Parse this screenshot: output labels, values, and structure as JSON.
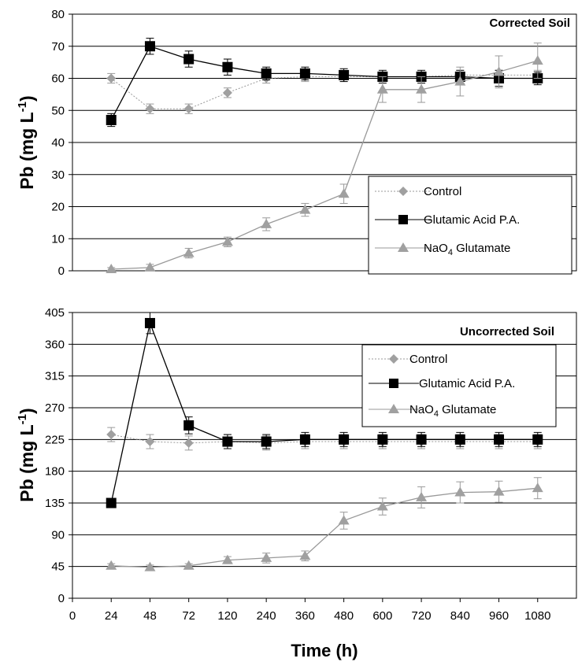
{
  "chart_data": [
    {
      "type": "line",
      "title": "Corrected Soil",
      "ylabel": "Pb (mg L-1)",
      "xlabel": "",
      "categories": [
        "24",
        "48",
        "72",
        "120",
        "240",
        "360",
        "480",
        "600",
        "720",
        "840",
        "960",
        "1080"
      ],
      "ylim": [
        0,
        80
      ],
      "yticks": [
        "0",
        "10",
        "20",
        "30",
        "40",
        "50",
        "60",
        "70",
        "80"
      ],
      "grid": "horizontal",
      "legend_position": "bottom-right",
      "series": [
        {
          "name": "Control",
          "color": "#999999",
          "marker": "diamond",
          "line": "dotted",
          "values": [
            60,
            50.5,
            50.5,
            55.5,
            60,
            60.5,
            60.5,
            60.5,
            60.5,
            61,
            61,
            61
          ],
          "errors": [
            1.5,
            1.5,
            1.5,
            1.5,
            1.5,
            1.5,
            1.5,
            1.5,
            1.5,
            1.5,
            1.5,
            1.5
          ]
        },
        {
          "name": "Glutamic Acid P.A.",
          "color": "#000000",
          "marker": "square",
          "line": "solid",
          "values": [
            47,
            70,
            66,
            63.5,
            61.5,
            61.5,
            61,
            60.5,
            60.5,
            60.5,
            60,
            60
          ],
          "errors": [
            2,
            2.5,
            2.5,
            2.5,
            2,
            2,
            2,
            2,
            2,
            2,
            2.5,
            2
          ]
        },
        {
          "name": "NaO4 Glutamate",
          "color": "#999999",
          "marker": "triangle",
          "line": "solid",
          "values": [
            0.5,
            1,
            5.5,
            9,
            14.5,
            19,
            24,
            56.5,
            56.5,
            59,
            62,
            65.5
          ],
          "errors": [
            0.5,
            1,
            1.5,
            1.5,
            2,
            2,
            3,
            4,
            4,
            4.5,
            5,
            5.5
          ]
        }
      ]
    },
    {
      "type": "line",
      "title": "Uncorrected Soil",
      "ylabel": "Pb (mg L-1)",
      "xlabel": "Time (h)",
      "categories": [
        "24",
        "48",
        "72",
        "120",
        "240",
        "360",
        "480",
        "600",
        "720",
        "840",
        "960",
        "1080"
      ],
      "xticks": [
        "0",
        "24",
        "48",
        "72",
        "120",
        "240",
        "360",
        "480",
        "600",
        "720",
        "840",
        "960",
        "1080"
      ],
      "ylim": [
        0,
        405
      ],
      "yticks": [
        "0",
        "45",
        "90",
        "135",
        "180",
        "225",
        "270",
        "315",
        "360",
        "405"
      ],
      "grid": "horizontal",
      "legend_position": "top-right",
      "series": [
        {
          "name": "Control",
          "color": "#999999",
          "marker": "diamond",
          "line": "dotted",
          "values": [
            232,
            222,
            220,
            222,
            220,
            222,
            222,
            222,
            222,
            222,
            222,
            222
          ],
          "errors": [
            10,
            10,
            10,
            10,
            10,
            10,
            10,
            10,
            10,
            10,
            10,
            10
          ]
        },
        {
          "name": "Glutamic Acid P.A.",
          "color": "#000000",
          "marker": "square",
          "line": "solid",
          "values": [
            135,
            390,
            245,
            222,
            222,
            225,
            225,
            225,
            225,
            225,
            225,
            225
          ],
          "errors": [
            3,
            15,
            12,
            10,
            10,
            10,
            10,
            10,
            10,
            10,
            10,
            10
          ]
        },
        {
          "name": "NaO4 Glutamate",
          "color": "#999999",
          "marker": "triangle",
          "line": "solid",
          "values": [
            46,
            44,
            46,
            54,
            57,
            60,
            110,
            130,
            143,
            150,
            151,
            156
          ],
          "errors": [
            3,
            3,
            3,
            5,
            7,
            7,
            12,
            12,
            15,
            15,
            15,
            15
          ]
        }
      ]
    }
  ]
}
